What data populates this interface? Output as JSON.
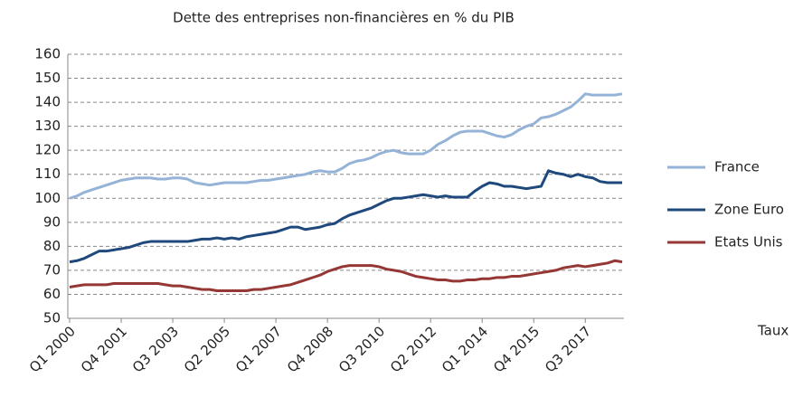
{
  "chart_data": {
    "type": "line",
    "title": "Dette des entreprises non-financières en % du PIB",
    "x_label": "Taux",
    "categories": [
      "Q1 2000",
      null,
      null,
      null,
      null,
      null,
      null,
      "Q4 2001",
      null,
      null,
      null,
      null,
      null,
      null,
      "Q3 2003",
      null,
      null,
      null,
      null,
      null,
      null,
      "Q2 2005",
      null,
      null,
      null,
      null,
      null,
      null,
      "Q1 2007",
      null,
      null,
      null,
      null,
      null,
      null,
      "Q4 2008",
      null,
      null,
      null,
      null,
      null,
      null,
      "Q3 2010",
      null,
      null,
      null,
      null,
      null,
      null,
      "Q2 2012",
      null,
      null,
      null,
      null,
      null,
      null,
      "Q1 2014",
      null,
      null,
      null,
      null,
      null,
      null,
      "Q4 2015",
      null,
      null,
      null,
      null,
      null,
      null,
      "Q3 2017",
      null,
      null,
      null,
      null,
      null
    ],
    "series": [
      {
        "name": "France",
        "color": "#95b3d7",
        "values": [
          100,
          101,
          102.5,
          103.5,
          104.5,
          105.5,
          106.5,
          107.5,
          108,
          108.5,
          108.5,
          108.5,
          108,
          108,
          108.5,
          108.5,
          108,
          106.5,
          106,
          105.5,
          106,
          106.5,
          106.5,
          106.5,
          106.5,
          107,
          107.5,
          107.5,
          108,
          108.5,
          109,
          109.5,
          110,
          111,
          111.5,
          111,
          111,
          112.5,
          114.5,
          115.5,
          116,
          117,
          118.5,
          119.5,
          120,
          119,
          118.5,
          118.5,
          118.5,
          120,
          122.5,
          124,
          126,
          127.5,
          128,
          128,
          128,
          127,
          126,
          125.5,
          126.5,
          128.5,
          130,
          131,
          133.5,
          134,
          135,
          136.5,
          138,
          140.5,
          143.5,
          143,
          143,
          143,
          143,
          143.5
        ]
      },
      {
        "name": "Zone Euro",
        "color": "#1f497d",
        "values": [
          73.5,
          74,
          75,
          76.5,
          78,
          78,
          78.5,
          79,
          79.5,
          80.5,
          81.5,
          82,
          82,
          82,
          82,
          82,
          82,
          82.5,
          83,
          83,
          83.5,
          83,
          83.5,
          83,
          84,
          84.5,
          85,
          85.5,
          86,
          87,
          88,
          88,
          87,
          87.5,
          88,
          89,
          89.5,
          91.5,
          93,
          94,
          95,
          96,
          97.5,
          99,
          100,
          100,
          100.5,
          101,
          101.5,
          101,
          100.5,
          101,
          100.5,
          100.5,
          100.5,
          103,
          105,
          106.5,
          106,
          105,
          105,
          104.5,
          104,
          104.5,
          105,
          111.5,
          110.5,
          110,
          109,
          110,
          109,
          108.5,
          107,
          106.5,
          106.5,
          106.5
        ]
      },
      {
        "name": "Etats Unis",
        "color": "#953735",
        "values": [
          63,
          63.5,
          64,
          64,
          64,
          64,
          64.5,
          64.5,
          64.5,
          64.5,
          64.5,
          64.5,
          64.5,
          64,
          63.5,
          63.5,
          63,
          62.5,
          62,
          62,
          61.5,
          61.5,
          61.5,
          61.5,
          61.5,
          62,
          62,
          62.5,
          63,
          63.5,
          64,
          65,
          66,
          67,
          68,
          69.5,
          70.5,
          71.5,
          72,
          72,
          72,
          72,
          71.5,
          70.5,
          70,
          69.5,
          68.5,
          67.5,
          67,
          66.5,
          66,
          66,
          65.5,
          65.5,
          66,
          66,
          66.5,
          66.5,
          67,
          67,
          67.5,
          67.5,
          68,
          68.5,
          69,
          69.5,
          70,
          71,
          71.5,
          72,
          71.5,
          72,
          72.5,
          73,
          74,
          73.5
        ]
      }
    ],
    "ylim": [
      50,
      160
    ],
    "yticks": [
      50,
      60,
      70,
      80,
      90,
      100,
      110,
      120,
      130,
      140,
      150,
      160
    ],
    "grid": true,
    "legend": "right"
  }
}
